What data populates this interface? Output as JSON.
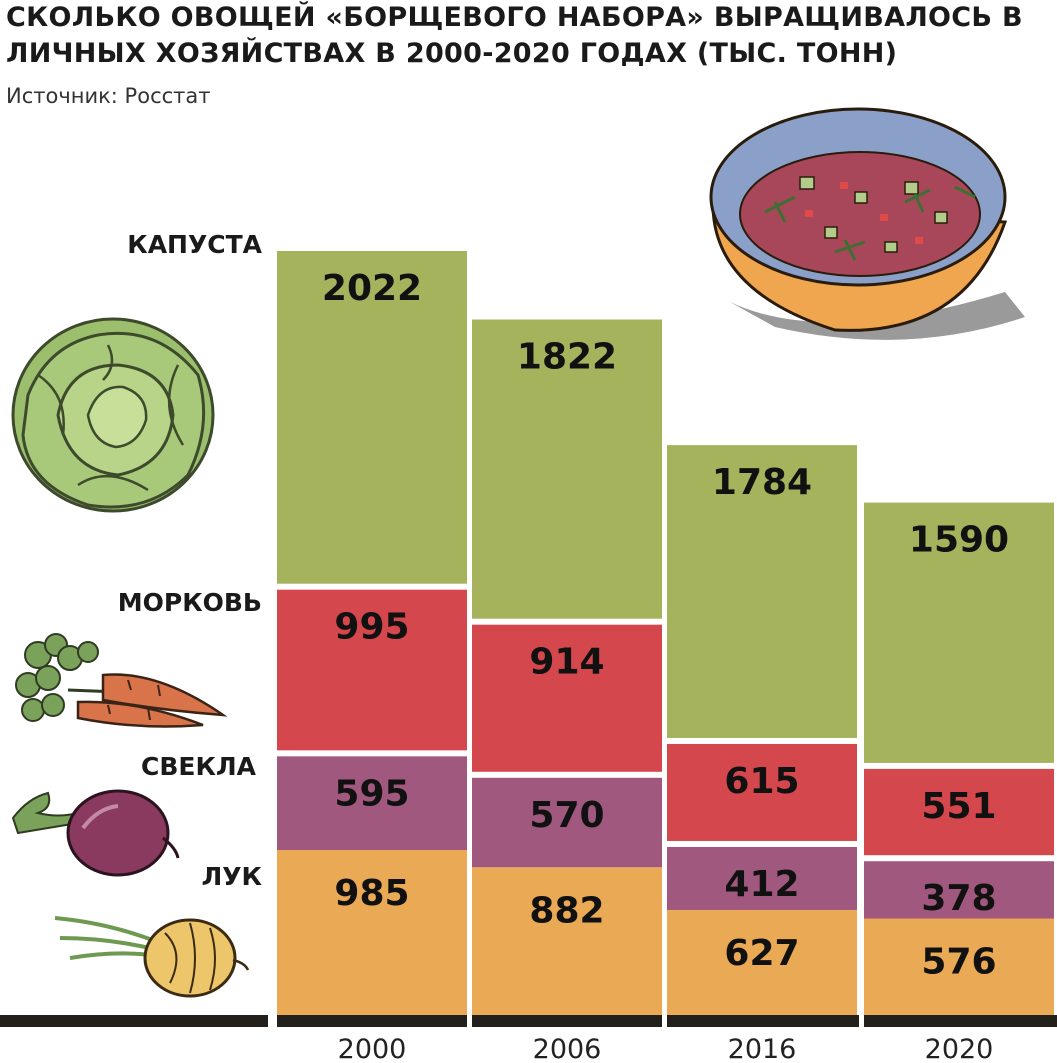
{
  "title": "СКОЛЬКО ОВОЩЕЙ «БОРЩЕВОГО НАБОРА» ВЫРАЩИВАЛОСЬ В ЛИЧНЫХ ХОЗЯЙСТВАХ В 2000-2020 ГОДАХ (ТЫС. ТОНН)",
  "source": "Источник: Росстат",
  "chart_data": {
    "type": "bar",
    "stacked": true,
    "categories": [
      "2000",
      "2006",
      "2016",
      "2020"
    ],
    "series": [
      {
        "name": "ЛУК",
        "values": [
          985,
          882,
          627,
          576
        ],
        "color": "#e9a955"
      },
      {
        "name": "СВЕКЛА",
        "values": [
          595,
          570,
          412,
          378
        ],
        "color": "#a1587f"
      },
      {
        "name": "МОРКОВЬ",
        "values": [
          995,
          914,
          615,
          551
        ],
        "color": "#d4474d"
      },
      {
        "name": "КАПУСТА",
        "values": [
          2022,
          1822,
          1784,
          1590
        ],
        "color": "#a5b35c"
      }
    ],
    "legend": "left",
    "grid": false
  }
}
